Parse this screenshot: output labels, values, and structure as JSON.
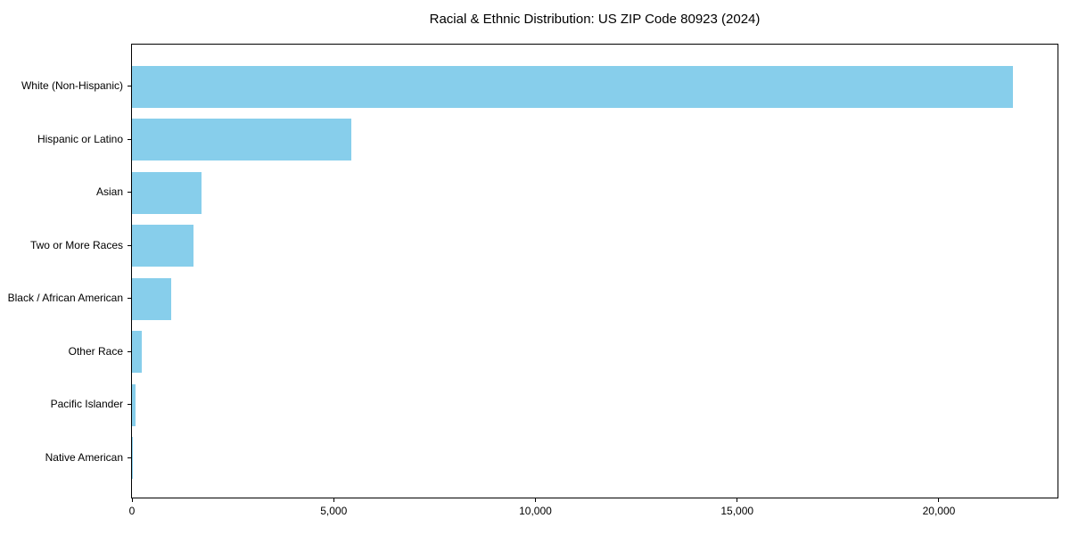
{
  "chart_data": {
    "type": "bar",
    "orientation": "horizontal",
    "title": "Racial & Ethnic Distribution: US ZIP Code 80923 (2024)",
    "categories": [
      "White (Non-Hispanic)",
      "Hispanic or Latino",
      "Asian",
      "Two or More Races",
      "Black / African American",
      "Other Race",
      "Pacific Islander",
      "Native American"
    ],
    "values": [
      21830,
      5440,
      1720,
      1530,
      970,
      240,
      90,
      20
    ],
    "bar_color": "#87CEEB",
    "axis_color": "#000000",
    "text_color": "#000000",
    "xlabel": "",
    "ylabel": "",
    "xlim": [
      0,
      22940
    ],
    "x_ticks": [
      0,
      5000,
      10000,
      15000,
      20000
    ],
    "x_tick_labels": [
      "0",
      "5,000",
      "10,000",
      "15,000",
      "20,000"
    ],
    "grid": false,
    "legend": null
  }
}
